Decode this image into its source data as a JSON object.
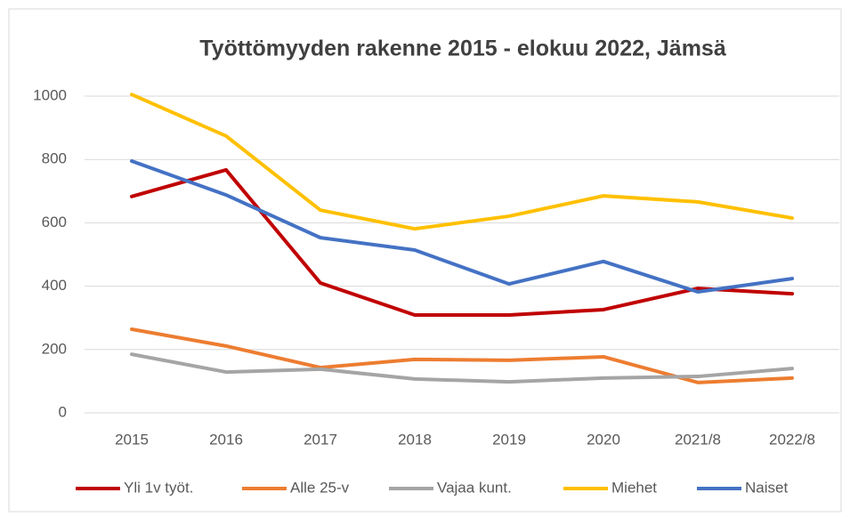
{
  "chart_data": {
    "type": "line",
    "title": "Työttömyyden rakenne 2015 - elokuu 2022, Jämsä",
    "categories": [
      "2015",
      "2016",
      "2017",
      "2018",
      "2019",
      "2020",
      "2021/8",
      "2022/8"
    ],
    "series": [
      {
        "name": "Yli 1v työt.",
        "color": "#c00000",
        "values": [
          683,
          767,
          410,
          309,
          309,
          326,
          393,
          376
        ]
      },
      {
        "name": "Alle 25-v",
        "color": "#ed7d31",
        "values": [
          264,
          211,
          143,
          169,
          166,
          177,
          96,
          110
        ]
      },
      {
        "name": "Vajaa kunt.",
        "color": "#a5a5a5",
        "values": [
          185,
          129,
          138,
          107,
          98,
          110,
          115,
          140
        ]
      },
      {
        "name": "Miehet",
        "color": "#ffc000",
        "values": [
          1005,
          874,
          640,
          581,
          621,
          685,
          666,
          615
        ]
      },
      {
        "name": "Naiset",
        "color": "#4472c4",
        "values": [
          795,
          688,
          553,
          514,
          407,
          478,
          382,
          424
        ]
      }
    ],
    "ylim": [
      0,
      1000
    ],
    "yticks": [
      0,
      200,
      400,
      600,
      800,
      1000
    ],
    "grid": true,
    "legend": "bottom"
  }
}
